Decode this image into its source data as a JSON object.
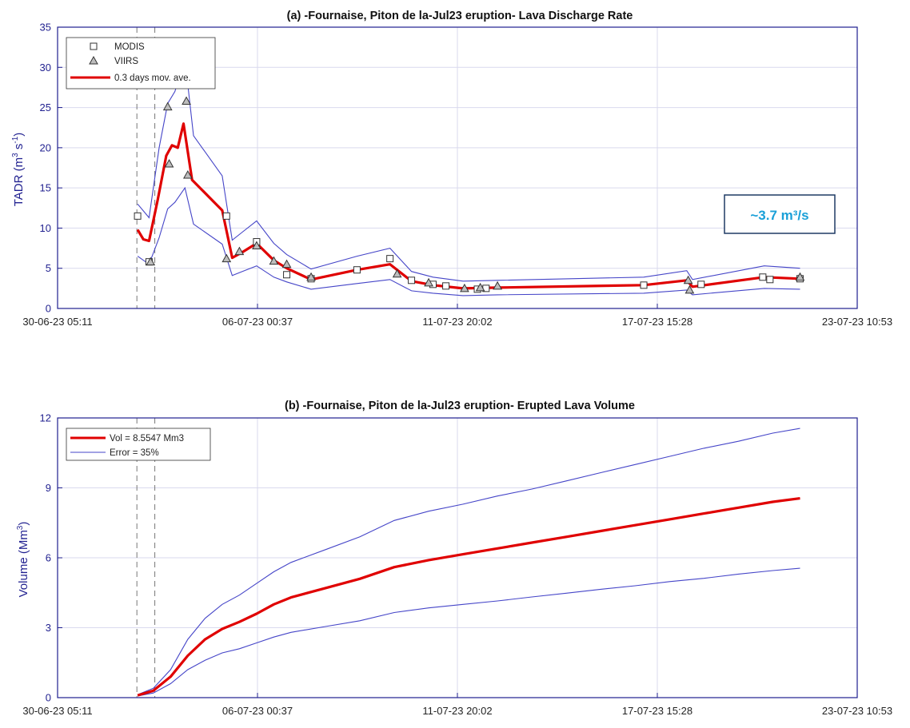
{
  "colors": {
    "axis": "#1f1f8f",
    "grid": "#d9d9ee",
    "mavg": "#e00000",
    "envelope": "#4545c8",
    "marker_fill": "#bdbdbd",
    "annotation": "#1aa0d8"
  },
  "x_axis": {
    "type": "datetime",
    "ticks": [
      "30-06-23 05:11",
      "06-07-23 00:37",
      "11-07-23 20:02",
      "17-07-23 15:28",
      "23-07-23 10:53"
    ]
  },
  "chart_data": [
    {
      "type": "line",
      "title": "(a) -Fournaise, Piton de la-Jul23 eruption- Lava Discharge Rate",
      "ylabel": "TADR (m",
      "ylabel_sup1": "3",
      "ylabel_mid": " s",
      "ylabel_sup2": "-1",
      "ylabel_end": ")",
      "ylim": [
        0,
        35
      ],
      "yticks": [
        "0",
        "5",
        "10",
        "15",
        "20",
        "25",
        "30",
        "35"
      ],
      "legend_position": "top-left",
      "vlines": [
        "2023-07-02T12:30",
        "2023-07-03T01:00"
      ],
      "annotation": "~3.7 m³/s",
      "series": [
        {
          "name": "MODIS",
          "marker": "square",
          "points": [
            [
              "2023-07-02T13:00",
              11.5
            ],
            [
              "2023-07-02T21:00",
              5.8
            ],
            [
              "2023-07-05T03:00",
              11.5
            ],
            [
              "2023-07-06T00:00",
              8.3
            ],
            [
              "2023-07-06T21:00",
              4.2
            ],
            [
              "2023-07-07T14:00",
              3.7
            ],
            [
              "2023-07-08T22:00",
              4.8
            ],
            [
              "2023-07-09T21:00",
              6.2
            ],
            [
              "2023-07-10T12:00",
              3.5
            ],
            [
              "2023-07-11T03:00",
              3.0
            ],
            [
              "2023-07-11T12:00",
              2.8
            ],
            [
              "2023-07-12T10:00",
              2.4
            ],
            [
              "2023-07-12T16:00",
              2.5
            ],
            [
              "2023-07-17T06:00",
              2.9
            ],
            [
              "2023-07-18T22:00",
              3.0
            ],
            [
              "2023-07-20T17:00",
              3.9
            ],
            [
              "2023-07-20T22:00",
              3.6
            ],
            [
              "2023-07-21T19:00",
              3.7
            ]
          ]
        },
        {
          "name": "VIIRS",
          "marker": "triangle",
          "points": [
            [
              "2023-07-02T22:00",
              5.8
            ],
            [
              "2023-07-03T10:00",
              25.1
            ],
            [
              "2023-07-03T11:00",
              18.0
            ],
            [
              "2023-07-03T23:00",
              25.8
            ],
            [
              "2023-07-04T00:00",
              16.6
            ],
            [
              "2023-07-05T03:00",
              6.2
            ],
            [
              "2023-07-05T12:00",
              7.1
            ],
            [
              "2023-07-06T00:00",
              7.8
            ],
            [
              "2023-07-06T12:00",
              5.9
            ],
            [
              "2023-07-06T21:00",
              5.5
            ],
            [
              "2023-07-07T14:00",
              3.9
            ],
            [
              "2023-07-10T02:00",
              4.3
            ],
            [
              "2023-07-11T00:00",
              3.2
            ],
            [
              "2023-07-12T01:00",
              2.5
            ],
            [
              "2023-07-12T12:00",
              2.6
            ],
            [
              "2023-07-13T00:00",
              2.8
            ],
            [
              "2023-07-18T13:00",
              3.5
            ],
            [
              "2023-07-18T14:00",
              2.3
            ],
            [
              "2023-07-21T19:00",
              3.9
            ]
          ]
        },
        {
          "name": "0.3 days mov. ave.",
          "style": "mavg",
          "points": [
            [
              "2023-07-02T13:00",
              9.8
            ],
            [
              "2023-07-02T17:00",
              8.6
            ],
            [
              "2023-07-02T21:00",
              8.4
            ],
            [
              "2023-07-03T03:00",
              13.5
            ],
            [
              "2023-07-03T09:00",
              19.0
            ],
            [
              "2023-07-03T13:00",
              20.3
            ],
            [
              "2023-07-03T17:00",
              20.0
            ],
            [
              "2023-07-03T21:00",
              23.0
            ],
            [
              "2023-07-04T03:00",
              16.0
            ],
            [
              "2023-07-05T00:00",
              12.2
            ],
            [
              "2023-07-05T07:00",
              6.3
            ],
            [
              "2023-07-05T14:00",
              7.0
            ],
            [
              "2023-07-06T00:00",
              8.1
            ],
            [
              "2023-07-06T12:00",
              6.0
            ],
            [
              "2023-07-06T21:00",
              5.0
            ],
            [
              "2023-07-07T14:00",
              3.6
            ],
            [
              "2023-07-08T22:00",
              4.8
            ],
            [
              "2023-07-09T21:00",
              5.5
            ],
            [
              "2023-07-10T12:00",
              3.4
            ],
            [
              "2023-07-11T03:00",
              2.9
            ],
            [
              "2023-07-12T00:00",
              2.5
            ],
            [
              "2023-07-13T00:00",
              2.6
            ],
            [
              "2023-07-17T06:00",
              2.9
            ],
            [
              "2023-07-18T12:00",
              3.5
            ],
            [
              "2023-07-18T16:00",
              2.7
            ],
            [
              "2023-07-20T18:00",
              3.9
            ],
            [
              "2023-07-21T19:00",
              3.7
            ]
          ]
        },
        {
          "style": "envelope",
          "points": [
            [
              "2023-07-02T13:00",
              13.0
            ],
            [
              "2023-07-02T21:00",
              11.3
            ],
            [
              "2023-07-03T04:00",
              20.0
            ],
            [
              "2023-07-03T10:00",
              25.5
            ],
            [
              "2023-07-03T15:00",
              27.0
            ],
            [
              "2023-07-03T22:00",
              31.0
            ],
            [
              "2023-07-04T04:00",
              21.5
            ],
            [
              "2023-07-05T00:00",
              16.5
            ],
            [
              "2023-07-05T07:00",
              8.5
            ],
            [
              "2023-07-05T14:00",
              9.5
            ],
            [
              "2023-07-06T00:00",
              10.9
            ],
            [
              "2023-07-06T12:00",
              8.1
            ],
            [
              "2023-07-06T21:00",
              6.7
            ],
            [
              "2023-07-07T14:00",
              4.9
            ],
            [
              "2023-07-08T22:00",
              6.5
            ],
            [
              "2023-07-09T21:00",
              7.5
            ],
            [
              "2023-07-10T12:00",
              4.6
            ],
            [
              "2023-07-11T03:00",
              3.9
            ],
            [
              "2023-07-12T00:00",
              3.4
            ],
            [
              "2023-07-13T00:00",
              3.5
            ],
            [
              "2023-07-17T06:00",
              3.9
            ],
            [
              "2023-07-18T12:00",
              4.7
            ],
            [
              "2023-07-18T16:00",
              3.6
            ],
            [
              "2023-07-20T18:00",
              5.3
            ],
            [
              "2023-07-21T19:00",
              5.0
            ]
          ]
        },
        {
          "style": "envelope",
          "points": [
            [
              "2023-07-02T13:00",
              6.5
            ],
            [
              "2023-07-02T21:00",
              5.5
            ],
            [
              "2023-07-03T04:00",
              8.8
            ],
            [
              "2023-07-03T10:00",
              12.4
            ],
            [
              "2023-07-03T15:00",
              13.2
            ],
            [
              "2023-07-03T22:00",
              15.0
            ],
            [
              "2023-07-04T04:00",
              10.5
            ],
            [
              "2023-07-05T00:00",
              8.0
            ],
            [
              "2023-07-05T07:00",
              4.1
            ],
            [
              "2023-07-05T14:00",
              4.6
            ],
            [
              "2023-07-06T00:00",
              5.3
            ],
            [
              "2023-07-06T12:00",
              3.9
            ],
            [
              "2023-07-06T21:00",
              3.3
            ],
            [
              "2023-07-07T14:00",
              2.4
            ],
            [
              "2023-07-08T22:00",
              3.1
            ],
            [
              "2023-07-09T21:00",
              3.6
            ],
            [
              "2023-07-10T12:00",
              2.2
            ],
            [
              "2023-07-11T03:00",
              1.9
            ],
            [
              "2023-07-12T00:00",
              1.6
            ],
            [
              "2023-07-13T00:00",
              1.7
            ],
            [
              "2023-07-17T06:00",
              1.9
            ],
            [
              "2023-07-18T12:00",
              2.3
            ],
            [
              "2023-07-18T16:00",
              1.7
            ],
            [
              "2023-07-20T18:00",
              2.5
            ],
            [
              "2023-07-21T19:00",
              2.4
            ]
          ]
        }
      ]
    },
    {
      "type": "line",
      "title": "(b) -Fournaise, Piton de la-Jul23 eruption- Erupted Lava Volume",
      "ylabel": "Volume (Mm",
      "ylabel_sup1": "3",
      "ylabel_end": ")",
      "ylim": [
        0,
        12
      ],
      "yticks": [
        "0",
        "3",
        "6",
        "9",
        "12"
      ],
      "legend_position": "top-left",
      "vlines": [
        "2023-07-02T12:30",
        "2023-07-03T01:00"
      ],
      "series": [
        {
          "name": "Vol = 8.5547 Mm3",
          "style": "mavg",
          "points": [
            [
              "2023-07-02T13:00",
              0.1
            ],
            [
              "2023-07-03T00:00",
              0.3
            ],
            [
              "2023-07-03T12:00",
              0.9
            ],
            [
              "2023-07-04T00:00",
              1.8
            ],
            [
              "2023-07-04T12:00",
              2.5
            ],
            [
              "2023-07-05T00:00",
              2.95
            ],
            [
              "2023-07-05T12:00",
              3.25
            ],
            [
              "2023-07-06T00:00",
              3.6
            ],
            [
              "2023-07-06T12:00",
              4.0
            ],
            [
              "2023-07-07T00:00",
              4.3
            ],
            [
              "2023-07-08T00:00",
              4.7
            ],
            [
              "2023-07-09T00:00",
              5.1
            ],
            [
              "2023-07-10T00:00",
              5.6
            ],
            [
              "2023-07-11T00:00",
              5.9
            ],
            [
              "2023-07-12T00:00",
              6.15
            ],
            [
              "2023-07-13T00:00",
              6.4
            ],
            [
              "2023-07-14T00:00",
              6.65
            ],
            [
              "2023-07-15T00:00",
              6.9
            ],
            [
              "2023-07-16T00:00",
              7.15
            ],
            [
              "2023-07-17T00:00",
              7.4
            ],
            [
              "2023-07-18T00:00",
              7.65
            ],
            [
              "2023-07-19T00:00",
              7.9
            ],
            [
              "2023-07-20T00:00",
              8.15
            ],
            [
              "2023-07-21T00:00",
              8.4
            ],
            [
              "2023-07-21T19:00",
              8.55
            ]
          ]
        },
        {
          "name": "Error = 35%",
          "style": "envelope",
          "points": [
            [
              "2023-07-02T13:00",
              0.13
            ],
            [
              "2023-07-03T00:00",
              0.4
            ],
            [
              "2023-07-03T12:00",
              1.2
            ],
            [
              "2023-07-04T00:00",
              2.5
            ],
            [
              "2023-07-04T12:00",
              3.4
            ],
            [
              "2023-07-05T00:00",
              4.0
            ],
            [
              "2023-07-05T12:00",
              4.4
            ],
            [
              "2023-07-06T00:00",
              4.9
            ],
            [
              "2023-07-06T12:00",
              5.4
            ],
            [
              "2023-07-07T00:00",
              5.8
            ],
            [
              "2023-07-08T00:00",
              6.35
            ],
            [
              "2023-07-09T00:00",
              6.9
            ],
            [
              "2023-07-10T00:00",
              7.6
            ],
            [
              "2023-07-11T00:00",
              8.0
            ],
            [
              "2023-07-12T00:00",
              8.3
            ],
            [
              "2023-07-13T00:00",
              8.65
            ],
            [
              "2023-07-14T00:00",
              8.95
            ],
            [
              "2023-07-15T00:00",
              9.3
            ],
            [
              "2023-07-16T00:00",
              9.65
            ],
            [
              "2023-07-17T00:00",
              10.0
            ],
            [
              "2023-07-18T00:00",
              10.35
            ],
            [
              "2023-07-19T00:00",
              10.7
            ],
            [
              "2023-07-20T00:00",
              11.0
            ],
            [
              "2023-07-21T00:00",
              11.35
            ],
            [
              "2023-07-21T19:00",
              11.55
            ]
          ]
        },
        {
          "style": "envelope",
          "points": [
            [
              "2023-07-02T13:00",
              0.07
            ],
            [
              "2023-07-03T00:00",
              0.2
            ],
            [
              "2023-07-03T12:00",
              0.6
            ],
            [
              "2023-07-04T00:00",
              1.2
            ],
            [
              "2023-07-04T12:00",
              1.6
            ],
            [
              "2023-07-05T00:00",
              1.92
            ],
            [
              "2023-07-05T12:00",
              2.1
            ],
            [
              "2023-07-06T00:00",
              2.35
            ],
            [
              "2023-07-06T12:00",
              2.6
            ],
            [
              "2023-07-07T00:00",
              2.8
            ],
            [
              "2023-07-08T00:00",
              3.05
            ],
            [
              "2023-07-09T00:00",
              3.3
            ],
            [
              "2023-07-10T00:00",
              3.65
            ],
            [
              "2023-07-11T00:00",
              3.85
            ],
            [
              "2023-07-12T00:00",
              4.0
            ],
            [
              "2023-07-13T00:00",
              4.15
            ],
            [
              "2023-07-14T00:00",
              4.32
            ],
            [
              "2023-07-15T00:00",
              4.48
            ],
            [
              "2023-07-16T00:00",
              4.65
            ],
            [
              "2023-07-17T00:00",
              4.8
            ],
            [
              "2023-07-18T00:00",
              4.98
            ],
            [
              "2023-07-19T00:00",
              5.12
            ],
            [
              "2023-07-20T00:00",
              5.3
            ],
            [
              "2023-07-21T00:00",
              5.45
            ],
            [
              "2023-07-21T19:00",
              5.55
            ]
          ]
        }
      ]
    }
  ]
}
